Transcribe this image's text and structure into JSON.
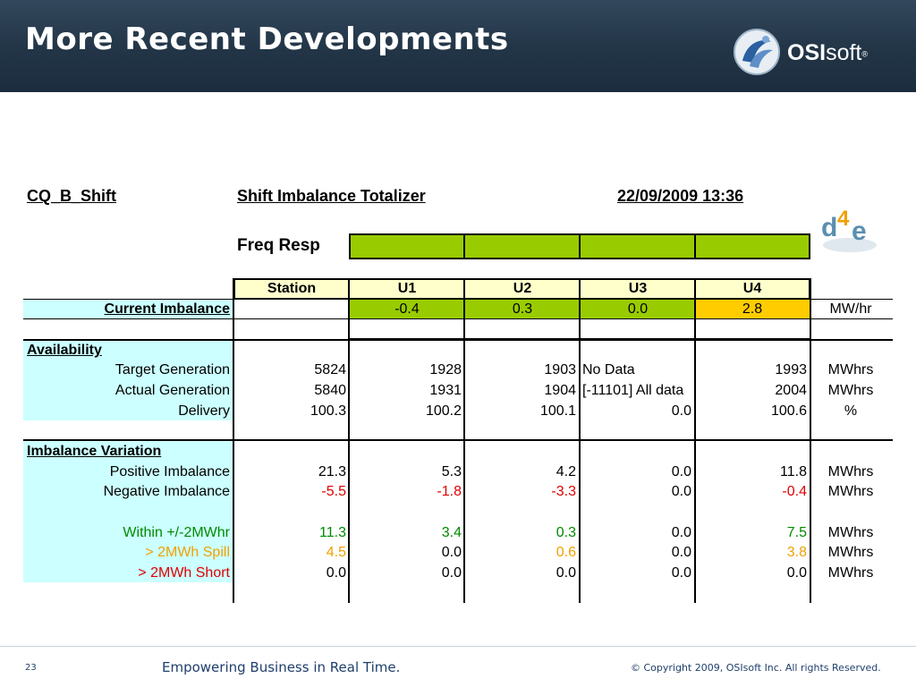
{
  "slide": {
    "title": "More Recent Developments",
    "logo_bold": "OSI",
    "logo_light": "soft",
    "logo_reg": "®",
    "footer_page": "23",
    "footer_tagline": "Empowering Business in Real Time.",
    "footer_copyright": "© Copyright 2009, OSIsoft Inc.  All rights Reserved."
  },
  "report": {
    "name": "CQ_B_Shift",
    "title": "Shift Imbalance Totalizer",
    "datetime": "22/09/2009 13:36",
    "d4e_logo": "d4e",
    "freq_resp_label": "Freq Resp",
    "freq_resp_colors": [
      "#99cc00",
      "#99cc00",
      "#99cc00",
      "#99cc00"
    ],
    "columns": [
      "Station",
      "U1",
      "U2",
      "U3",
      "U4"
    ],
    "current_imbalance": {
      "label": "Current Imbalance",
      "values": [
        "-0.4",
        "0.3",
        "0.0",
        "2.8"
      ],
      "colors": [
        "#99cc00",
        "#99cc00",
        "#99cc00",
        "#ffcc00"
      ],
      "unit": "MW/hr"
    },
    "availability": {
      "heading": "Availability",
      "rows": [
        {
          "label": "Target Generation",
          "values": [
            "5824",
            "1928",
            "1903",
            "No Data",
            "1993"
          ],
          "unit": "MWhrs"
        },
        {
          "label": "Actual Generation",
          "values": [
            "5840",
            "1931",
            "1904",
            "[-11101] All data",
            "2004"
          ],
          "unit": "MWhrs"
        },
        {
          "label": "Delivery",
          "values": [
            "100.3",
            "100.2",
            "100.1",
            "0.0",
            "100.6"
          ],
          "unit": "%"
        }
      ]
    },
    "imbalance_variation": {
      "heading": "Imbalance Variation",
      "rows": [
        {
          "label": "Positive Imbalance",
          "values": [
            "21.3",
            "5.3",
            "4.2",
            "0.0",
            "11.8"
          ],
          "unit": "MWhrs"
        },
        {
          "label": "Negative Imbalance",
          "values": [
            "-5.5",
            "-1.8",
            "-3.3",
            "0.0",
            "-0.4"
          ],
          "unit": "MWhrs"
        },
        {
          "label": "Within +/-2MWhr",
          "values": [
            "11.3",
            "3.4",
            "0.3",
            "0.0",
            "7.5"
          ],
          "unit": "MWhrs"
        },
        {
          "label": "> 2MWh Spill",
          "values": [
            "4.5",
            "0.0",
            "0.6",
            "0.0",
            "3.8"
          ],
          "unit": "MWhrs"
        },
        {
          "label": "> 2MWh Short",
          "values": [
            "0.0",
            "0.0",
            "0.0",
            "0.0",
            "0.0"
          ],
          "unit": "MWhrs"
        }
      ]
    },
    "colors": {
      "label_bg": "#ccffff",
      "header_bg": "#ffffcc",
      "ok_green": "#99cc00",
      "warn_orange": "#ffcc00",
      "negative_red": "#e00000",
      "within_green": "#008a00",
      "spill_orange": "#f0a000"
    }
  }
}
